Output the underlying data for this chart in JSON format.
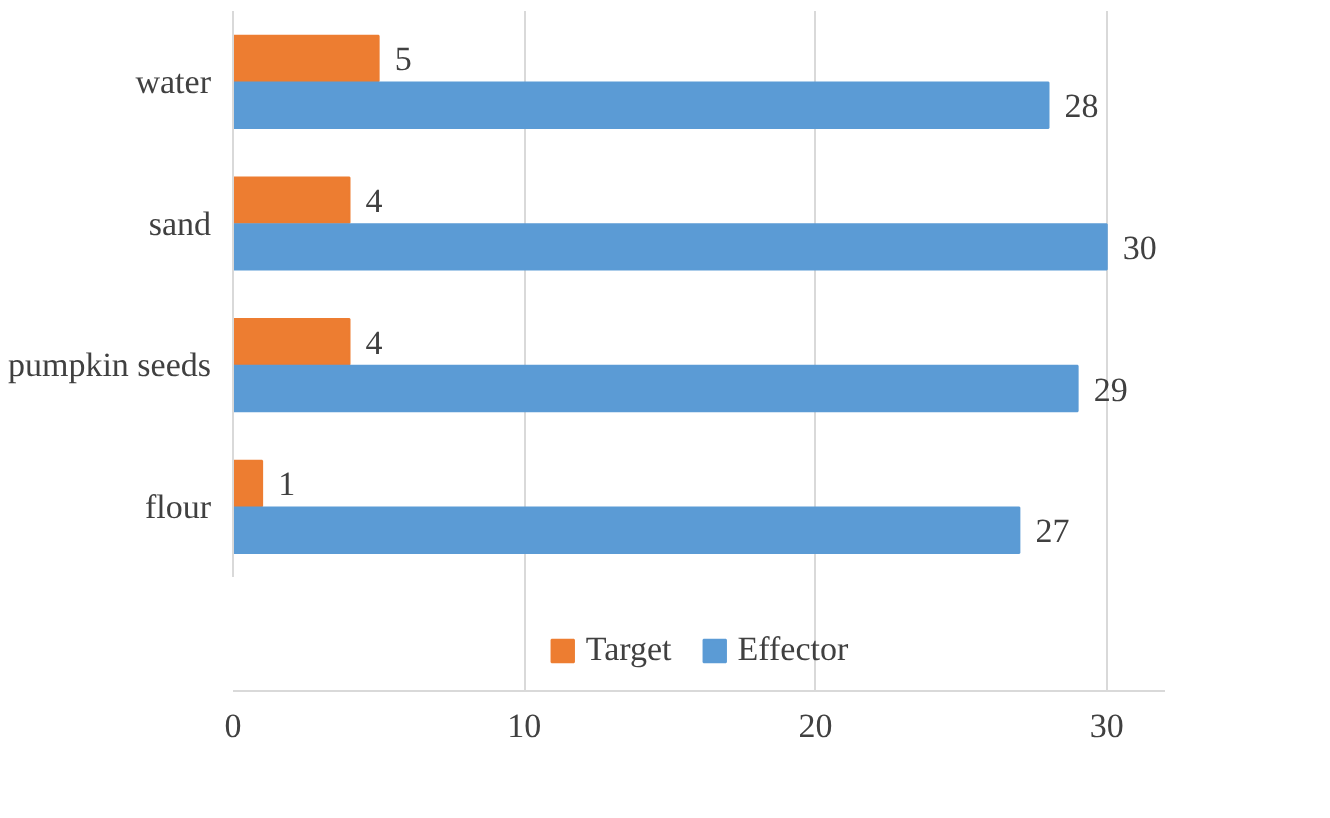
{
  "chart_data": {
    "type": "bar",
    "orientation": "horizontal",
    "categories": [
      "water",
      "sand",
      "pumpkin seeds",
      "flour"
    ],
    "series": [
      {
        "name": "Target",
        "color": "#ed7d31",
        "values": [
          5,
          4,
          4,
          1
        ]
      },
      {
        "name": "Effector",
        "color": "#5b9bd5",
        "values": [
          28,
          30,
          29,
          27
        ]
      }
    ],
    "xlim": [
      0,
      32
    ],
    "xticks": [
      0,
      10,
      20,
      30
    ],
    "grid": "x",
    "legend": "bottom",
    "data_labels": true
  }
}
